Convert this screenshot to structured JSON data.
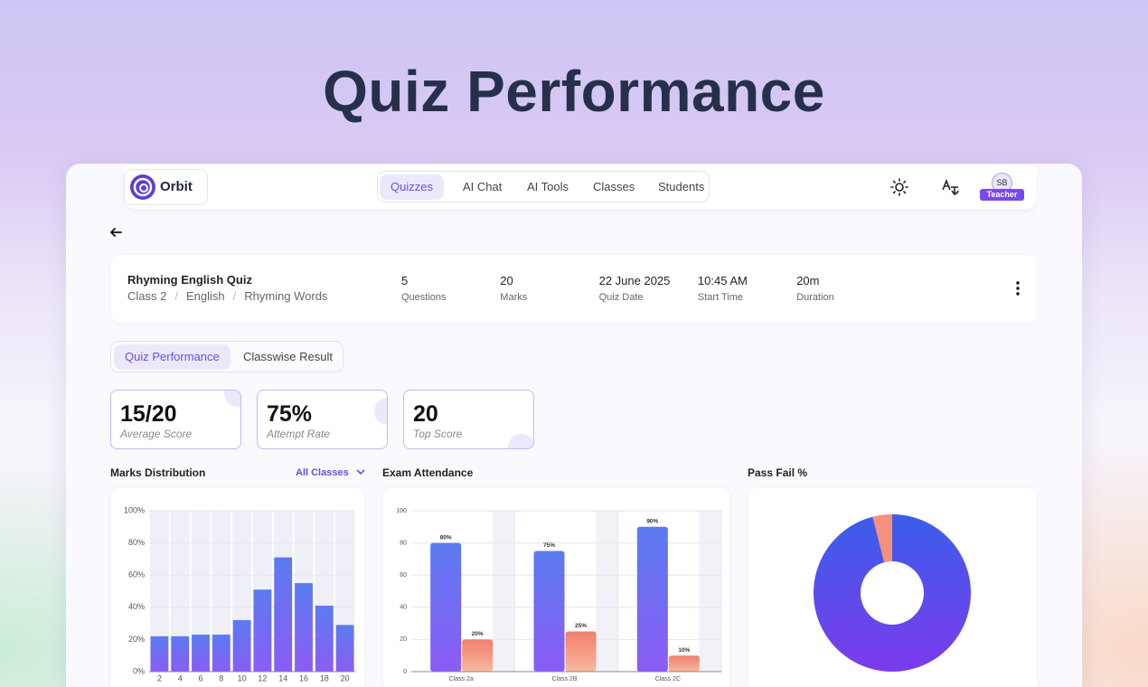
{
  "header": {
    "title": "Quiz Performance"
  },
  "nav": {
    "brand": "Orbit",
    "tabs": [
      "Quizzes",
      "AI Chat",
      "AI Tools",
      "Classes",
      "Students"
    ],
    "active_tab": 0,
    "avatar": "SB",
    "role": "Teacher"
  },
  "quiz": {
    "title": "Rhyming English Quiz",
    "breadcrumb": [
      "Class 2",
      "English",
      "Rhyming Words"
    ],
    "separator": "/",
    "stats": [
      {
        "value": "5",
        "label": "Questions"
      },
      {
        "value": "20",
        "label": "Marks"
      },
      {
        "value": "22 June 2025",
        "label": "Quiz Date"
      },
      {
        "value": "10:45 AM",
        "label": "Start Time"
      },
      {
        "value": "20m",
        "label": "Duration"
      }
    ]
  },
  "view_tabs": {
    "tabs": [
      "Quiz Performance",
      "Classwise Result"
    ],
    "active": 0
  },
  "kpis": [
    {
      "value": "15/20",
      "label": "Average Score"
    },
    {
      "value": "75%",
      "label": "Attempt Rate"
    },
    {
      "value": "20",
      "label": "Top Score"
    }
  ],
  "chart_data": [
    {
      "type": "bar",
      "title": "Marks Distribution",
      "filter": "All Classes",
      "categories": [
        2,
        4,
        6,
        8,
        10,
        12,
        14,
        16,
        18,
        20
      ],
      "values": [
        22,
        22,
        23,
        23,
        32,
        51,
        71,
        55,
        41,
        29
      ],
      "colors": [
        "#5b7bf0",
        "#8b5cf6"
      ],
      "ylim": [
        0,
        100
      ],
      "yticks": [
        {
          "value": 0,
          "label": "0%"
        },
        {
          "value": 20,
          "label": "20%"
        },
        {
          "value": 40,
          "label": "40%"
        },
        {
          "value": 60,
          "label": "60%"
        },
        {
          "value": 80,
          "label": "80%"
        },
        {
          "value": 100,
          "label": "100%"
        }
      ]
    },
    {
      "type": "grouped_bar",
      "title": "Exam Attendance",
      "categories": [
        "Class 2a",
        "Class 2B",
        "Class 2C"
      ],
      "series": [
        {
          "colors": [
            "#5b7bf0",
            "#8b5cf6"
          ],
          "values": [
            80,
            75,
            90
          ],
          "value_labels": [
            "80%",
            "75%",
            "90%"
          ]
        },
        {
          "colors": [
            "#f27f6e",
            "#f7b89d"
          ],
          "values": [
            20,
            25,
            10
          ],
          "value_labels": [
            "20%",
            "25%",
            "10%"
          ]
        }
      ],
      "ylim": [
        0,
        100
      ],
      "yticks": [
        0,
        20,
        40,
        60,
        80,
        100
      ]
    },
    {
      "type": "pie",
      "title": "Pass Fail %",
      "donut": true,
      "values": [
        96,
        4
      ],
      "colors": [
        [
          "#3a5ee8",
          "#7b3bec"
        ],
        [
          "#f4907c",
          "#f4907c"
        ]
      ]
    }
  ]
}
